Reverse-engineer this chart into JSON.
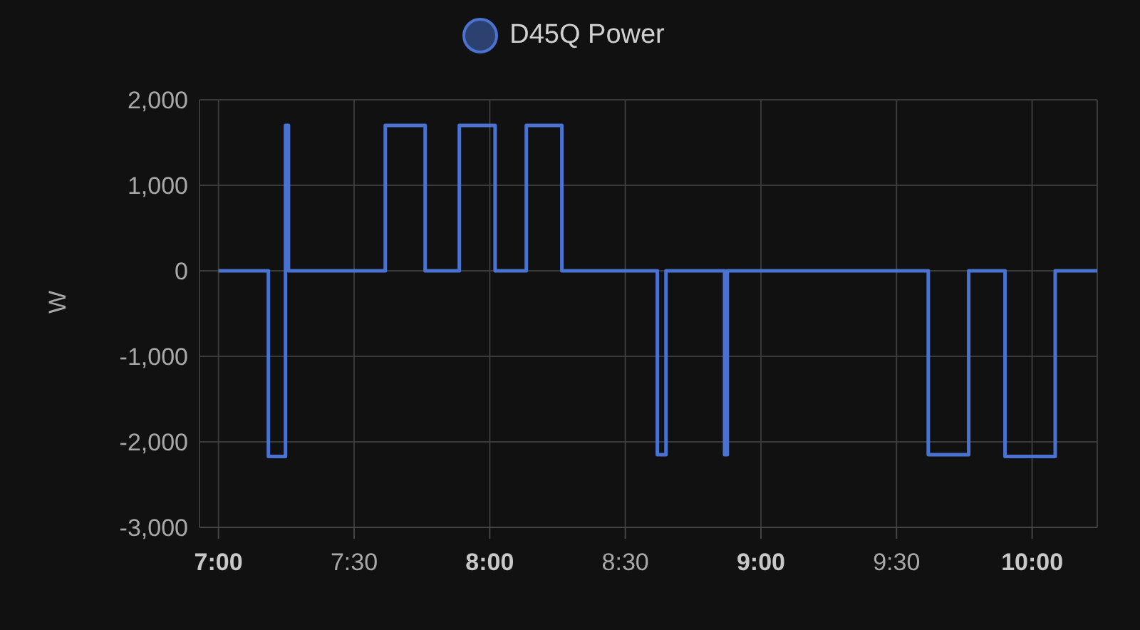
{
  "chart_data": {
    "type": "step",
    "ylabel": "W",
    "legend": "top",
    "grid": true,
    "marker": "none",
    "line_style": "solid",
    "xlim": [
      6.93,
      10.24
    ],
    "xticks": [
      {
        "value": 7,
        "label": "7:00"
      },
      {
        "value": 7.5,
        "label": "7:30"
      },
      {
        "value": 8,
        "label": "8:00"
      },
      {
        "value": 8.5,
        "label": "8:30"
      },
      {
        "value": 9,
        "label": "9:00"
      },
      {
        "value": 9.5,
        "label": "9:30"
      },
      {
        "value": 10,
        "label": "10:00"
      }
    ],
    "ylim": [
      -3000,
      2000
    ],
    "yticks": [
      {
        "value": -3000,
        "label": "-3,000"
      },
      {
        "value": -2000,
        "label": "-2,000"
      },
      {
        "value": -1000,
        "label": "-1,000"
      },
      {
        "value": 0,
        "label": "0"
      },
      {
        "value": 1000,
        "label": "1,000"
      },
      {
        "value": 2000,
        "label": "2,000"
      }
    ],
    "series": [
      {
        "name": "D45Q Power",
        "color": "#4a72d0",
        "x": [
          7.0,
          7.184,
          7.247,
          7.258,
          7.615,
          7.762,
          7.888,
          8.02,
          8.135,
          8.266,
          8.618,
          8.65,
          8.866,
          8.876,
          9.617,
          9.766,
          9.9,
          10.085,
          10.24
        ],
        "values": [
          0,
          -2170,
          1700,
          0,
          1700,
          0,
          1700,
          0,
          1700,
          0,
          -2150,
          0,
          -2150,
          0,
          -2150,
          0,
          -2170,
          0,
          0
        ]
      }
    ]
  }
}
